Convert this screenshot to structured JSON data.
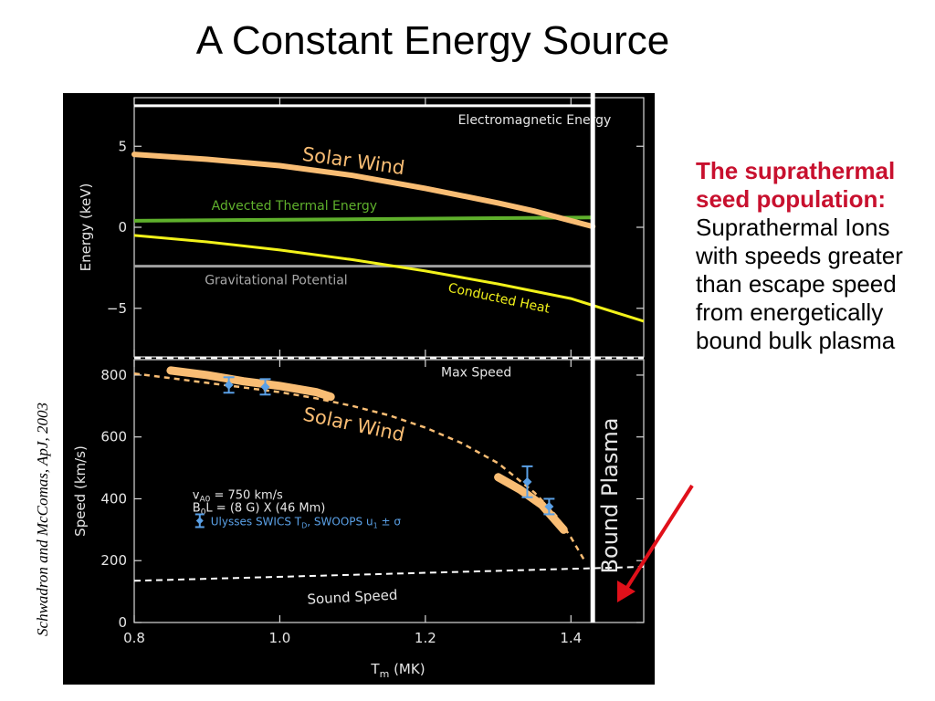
{
  "slide": {
    "title": "A Constant Energy Source",
    "citation": "Schwadron and McComas, ApJ, 2003",
    "side_heading": "The suprathermal seed population:",
    "side_body": "Suprathermal Ions with speeds greater than escape speed from energetically bound bulk plasma",
    "arrow_color": "#e0101a"
  },
  "chart_data": [
    {
      "type": "line",
      "panel": "energy",
      "xlabel": "",
      "ylabel": "Energy (keV)",
      "xlim": [
        0.8,
        1.5
      ],
      "ylim": [
        -8,
        8
      ],
      "yticks": [
        5,
        0,
        -5
      ],
      "ytick_labels": [
        "5",
        "0",
        "−5"
      ],
      "series": [
        {
          "name": "Solar Wind",
          "color": "#f9bd74",
          "x": [
            0.8,
            0.9,
            1.0,
            1.1,
            1.2,
            1.3,
            1.35,
            1.4,
            1.43
          ],
          "y": [
            4.5,
            4.2,
            3.8,
            3.2,
            2.4,
            1.5,
            1.0,
            0.4,
            0.05
          ]
        },
        {
          "name": "Advected Thermal Energy",
          "color": "#5fb02c",
          "x": [
            0.8,
            1.43
          ],
          "y": [
            0.4,
            0.6
          ]
        },
        {
          "name": "Electromagnetic Energy",
          "color": "#ffffff",
          "x": [
            0.8,
            1.43
          ],
          "y": [
            7.5,
            7.5
          ]
        },
        {
          "name": "Gravitational Potential",
          "color": "#a0a0a0",
          "x": [
            0.8,
            1.43
          ],
          "y": [
            -2.4,
            -2.4
          ]
        },
        {
          "name": "Conducted Heat",
          "color": "#f2f21a",
          "x": [
            0.8,
            0.9,
            1.0,
            1.1,
            1.2,
            1.3,
            1.4,
            1.5
          ],
          "y": [
            -0.5,
            -0.9,
            -1.4,
            -2.0,
            -2.7,
            -3.5,
            -4.4,
            -5.8
          ]
        }
      ]
    },
    {
      "type": "line",
      "panel": "speed",
      "xlabel": "T",
      "xlabel_sub": "m",
      "xlabel_unit": "(MK)",
      "ylabel": "Speed (km/s)",
      "xlim": [
        0.8,
        1.5
      ],
      "ylim": [
        0,
        850
      ],
      "xticks": [
        0.8,
        1.0,
        1.2,
        1.4
      ],
      "xtick_labels": [
        "0.8",
        "1.0",
        "1.2",
        "1.4"
      ],
      "yticks": [
        0,
        200,
        400,
        600,
        800
      ],
      "ytick_labels": [
        "0",
        "200",
        "400",
        "600",
        "800"
      ],
      "series": [
        {
          "name": "Solar Wind",
          "color": "#f9bd74",
          "x": [
            0.8,
            0.85,
            0.9,
            0.95,
            1.0,
            1.05,
            1.1,
            1.15,
            1.2,
            1.25,
            1.3,
            1.35,
            1.38,
            1.4,
            1.42
          ],
          "y": [
            805,
            790,
            775,
            760,
            745,
            725,
            700,
            670,
            630,
            580,
            515,
            420,
            345,
            275,
            195
          ]
        },
        {
          "name": "Max Speed",
          "color": "#ffffff",
          "x": [
            0.8,
            1.5
          ],
          "y": [
            855,
            855
          ]
        },
        {
          "name": "Sound Speed",
          "color": "#ffffff",
          "x": [
            0.8,
            1.5
          ],
          "y": [
            135,
            180
          ]
        }
      ],
      "bands": [
        {
          "x": [
            0.85,
            0.9,
            0.95,
            1.0,
            1.05,
            1.07
          ],
          "y": [
            815,
            800,
            780,
            765,
            745,
            730
          ]
        },
        {
          "x": [
            1.3,
            1.33,
            1.36,
            1.39
          ],
          "y": [
            470,
            430,
            380,
            300
          ]
        }
      ],
      "points": [
        {
          "x": 0.93,
          "y": 768,
          "err": 25
        },
        {
          "x": 0.98,
          "y": 762,
          "err": 25
        },
        {
          "x": 1.34,
          "y": 455,
          "err": 50
        },
        {
          "x": 1.37,
          "y": 375,
          "err": 25
        }
      ],
      "point_color": "#5aa0e6",
      "annotations": {
        "line1": "v",
        "line1_sub": "A0",
        "line1_rest": " = 750 km/s",
        "line2": "B",
        "line2_sub": "0",
        "line2_rest": "L = (8 G) X (46 Mm)",
        "legend": "Ulysses SWICS T",
        "legend_sub1": "D",
        "legend_mid": ", SWOOPS u",
        "legend_sub2": "1",
        "legend_end": " ± σ"
      }
    }
  ],
  "divider_label": "Bound Plasma",
  "divider_x": 1.43
}
